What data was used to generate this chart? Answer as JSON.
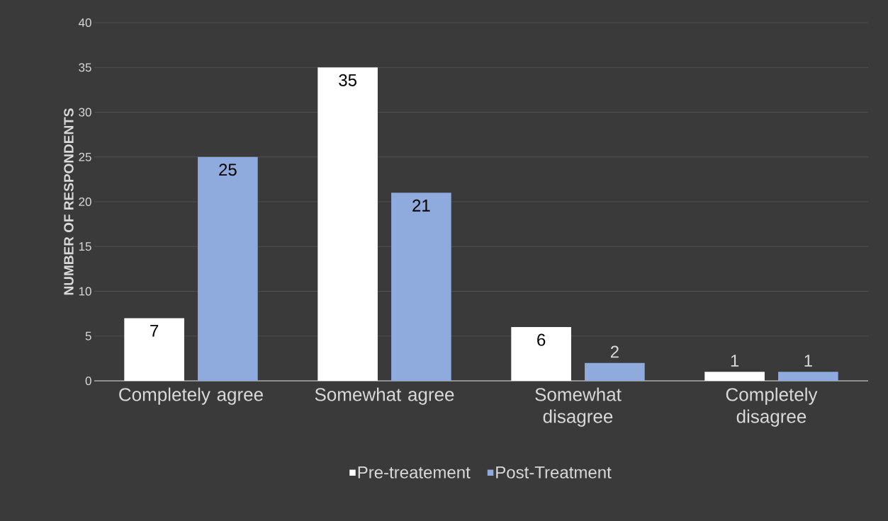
{
  "chart_data": {
    "type": "bar",
    "ylabel": "NUMBER OF RESPONDENTS",
    "categories": [
      "Completely agree",
      "Somewhat agree",
      "Somewhat disagree",
      "Completely disagree"
    ],
    "series": [
      {
        "name": "Pre-treatement",
        "color": "#ffffff",
        "values": [
          7,
          35,
          6,
          1
        ]
      },
      {
        "name": "Post-Treatment",
        "color": "#8faadc",
        "values": [
          25,
          21,
          2,
          1
        ]
      }
    ],
    "ylim": [
      0,
      40
    ],
    "yticks": [
      0,
      5,
      10,
      15,
      20,
      25,
      30,
      35,
      40
    ],
    "grid": "y",
    "legend": "bottom",
    "data_labels": true
  }
}
